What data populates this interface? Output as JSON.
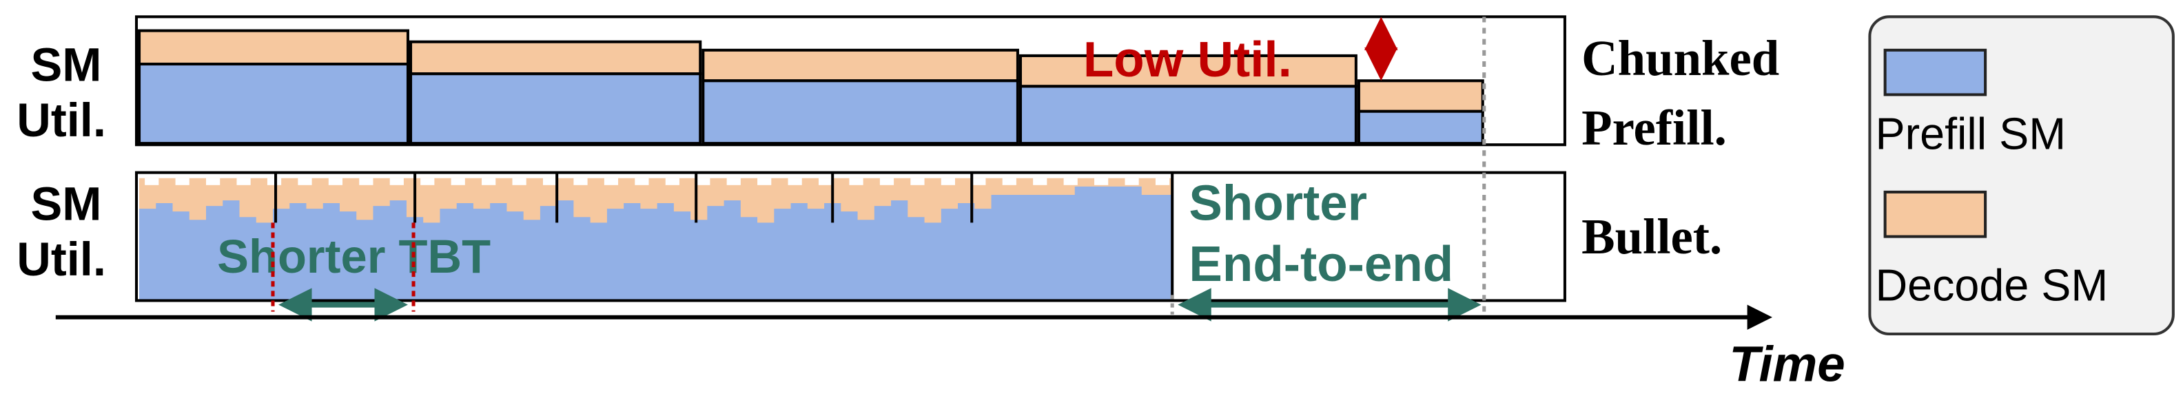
{
  "panels": [
    {
      "y_label": [
        "SM",
        "Util."
      ],
      "name": [
        "Chunked",
        "Prefill."
      ],
      "annotation": [
        "Low Util."
      ]
    },
    {
      "y_label": [
        "SM",
        "Util."
      ],
      "name": [
        "Bullet."
      ],
      "annotation": [
        "Shorter TBT"
      ]
    }
  ],
  "end_annotation": [
    "Shorter",
    "End-to-end"
  ],
  "axis_label": "Time",
  "legend": [
    "Prefill SM",
    "Decode SM"
  ]
}
